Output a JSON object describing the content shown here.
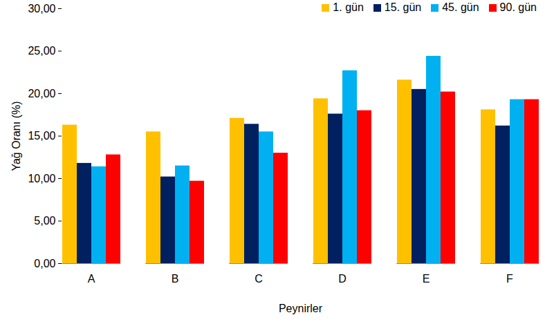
{
  "chart_data": {
    "type": "bar",
    "x_label": "Peynirler",
    "y_label": "Yağ Oranı (%)",
    "categories": [
      "A",
      "B",
      "C",
      "D",
      "E",
      "F"
    ],
    "series": [
      {
        "name": "1. gün",
        "color": "#FFC000",
        "values": [
          16.3,
          15.5,
          17.1,
          19.4,
          21.6,
          18.1
        ]
      },
      {
        "name": "15. gün",
        "color": "#002060",
        "values": [
          11.8,
          10.2,
          16.4,
          17.6,
          20.5,
          16.2
        ]
      },
      {
        "name": "45. gün",
        "color": "#00B0F0",
        "values": [
          11.4,
          11.5,
          15.5,
          22.7,
          24.4,
          19.3
        ]
      },
      {
        "name": "90. gün",
        "color": "#FF0000",
        "values": [
          12.8,
          9.7,
          13.0,
          18.0,
          20.2,
          19.3
        ]
      }
    ],
    "ylim": [
      0,
      30
    ],
    "yticks": [
      {
        "value": 0,
        "label": "0,00"
      },
      {
        "value": 5,
        "label": "5,00"
      },
      {
        "value": 10,
        "label": "10,00"
      },
      {
        "value": 15,
        "label": "15,00"
      },
      {
        "value": 20,
        "label": "20,00"
      },
      {
        "value": 25,
        "label": "25,00"
      },
      {
        "value": 30,
        "label": "30,00"
      }
    ],
    "grid": false,
    "legend": "top-right"
  }
}
